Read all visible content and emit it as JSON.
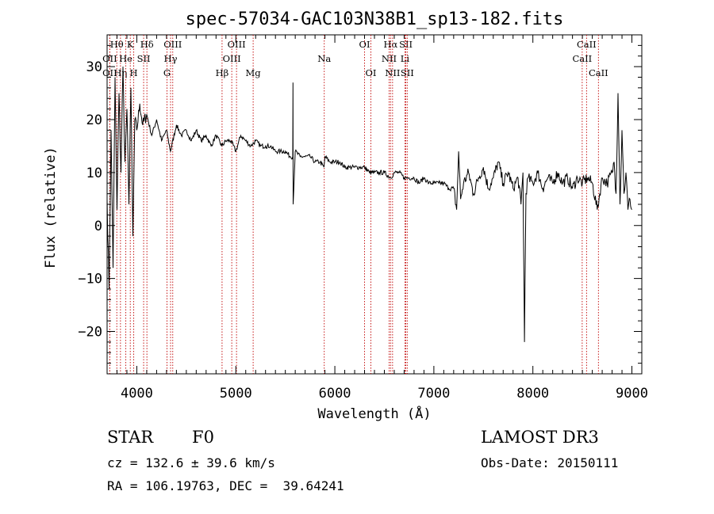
{
  "chart_data": {
    "type": "line",
    "title": "spec-57034-GAC103N38B1_sp13-182.fits",
    "xlabel": "Wavelength (Å)",
    "ylabel": "Flux (relative)",
    "xlim": [
      3700,
      9100
    ],
    "ylim": [
      -28,
      36
    ],
    "x_ticks": [
      4000,
      5000,
      6000,
      7000,
      8000,
      9000
    ],
    "x_tick_labels": [
      "4000",
      "5000",
      "6000",
      "7000",
      "8000",
      "9000"
    ],
    "y_ticks": [
      -20,
      -10,
      0,
      10,
      20,
      30
    ],
    "y_tick_labels": [
      "−20",
      "−10",
      "0",
      "10",
      "20",
      "30"
    ],
    "series": [
      {
        "name": "flux",
        "x": [
          3700,
          3720,
          3740,
          3760,
          3780,
          3800,
          3820,
          3840,
          3860,
          3880,
          3900,
          3920,
          3940,
          3960,
          3980,
          4000,
          4030,
          4060,
          4100,
          4150,
          4200,
          4250,
          4300,
          4340,
          4400,
          4450,
          4500,
          4550,
          4600,
          4650,
          4700,
          4750,
          4800,
          4860,
          4900,
          4950,
          5000,
          5050,
          5100,
          5150,
          5200,
          5250,
          5300,
          5350,
          5400,
          5450,
          5500,
          5550,
          5575,
          5577,
          5579,
          5600,
          5650,
          5700,
          5750,
          5800,
          5850,
          5890,
          5900,
          5950,
          6000,
          6050,
          6100,
          6150,
          6200,
          6250,
          6300,
          6350,
          6400,
          6450,
          6500,
          6563,
          6600,
          6650,
          6700,
          6750,
          6800,
          6850,
          6900,
          6950,
          7000,
          7050,
          7100,
          7150,
          7200,
          7230,
          7250,
          7270,
          7300,
          7350,
          7400,
          7450,
          7500,
          7550,
          7600,
          7650,
          7700,
          7750,
          7800,
          7850,
          7880,
          7900,
          7915,
          7930,
          7950,
          8000,
          8050,
          8100,
          8150,
          8200,
          8250,
          8300,
          8350,
          8400,
          8450,
          8500,
          8550,
          8600,
          8650,
          8700,
          8750,
          8800,
          8820,
          8840,
          8860,
          8880,
          8900,
          8920,
          8940,
          8960,
          8980,
          9000
        ],
        "y": [
          5,
          -12,
          18,
          -8,
          28,
          3,
          25,
          10,
          30,
          12,
          22,
          4,
          26,
          -2,
          20,
          18,
          23,
          19,
          21,
          17,
          20,
          16,
          18,
          14,
          19,
          17,
          18,
          16,
          18,
          16,
          17,
          15,
          17,
          15,
          16,
          16,
          14,
          17,
          16,
          15,
          16,
          15,
          15,
          15,
          14,
          14,
          14,
          13,
          13,
          27,
          4,
          14,
          13,
          13,
          13,
          12,
          12,
          11,
          13,
          12,
          12,
          12,
          11,
          11,
          11,
          11,
          11,
          10,
          10,
          10,
          10,
          9,
          10,
          10,
          9,
          9,
          9,
          8,
          9,
          8,
          8,
          8,
          8,
          7,
          7,
          3,
          14,
          5,
          8,
          10,
          6,
          9,
          11,
          7,
          9,
          12,
          8,
          10,
          7,
          9,
          4,
          10,
          -22,
          6,
          9,
          8,
          10,
          7,
          9,
          8,
          10,
          8,
          9,
          7,
          9,
          8,
          9,
          8,
          3,
          9,
          8,
          10,
          12,
          6,
          25,
          4,
          18,
          6,
          10,
          3,
          5,
          3
        ]
      }
    ],
    "line_markers": [
      {
        "label": "Hθ",
        "x": 3798,
        "row": 1
      },
      {
        "label": "OII",
        "x": 3727,
        "row": 2
      },
      {
        "label": "OII",
        "x": 3727,
        "row": 3
      },
      {
        "label": "Hη",
        "x": 3835,
        "row": 3
      },
      {
        "label": "He",
        "x": 3889,
        "row": 2
      },
      {
        "label": "K",
        "x": 3934,
        "row": 1
      },
      {
        "label": "H",
        "x": 3969,
        "row": 3
      },
      {
        "label": "SII",
        "x": 4069,
        "row": 2
      },
      {
        "label": "Hδ",
        "x": 4102,
        "row": 1
      },
      {
        "label": "OIII",
        "x": 4363,
        "row": 1
      },
      {
        "label": "Hγ",
        "x": 4341,
        "row": 2
      },
      {
        "label": "G",
        "x": 4305,
        "row": 3
      },
      {
        "label": "Hβ",
        "x": 4861,
        "row": 3
      },
      {
        "label": "OIII",
        "x": 5007,
        "row": 1
      },
      {
        "label": "OIII",
        "x": 4959,
        "row": 2
      },
      {
        "label": "Mg",
        "x": 5175,
        "row": 3
      },
      {
        "label": "Na",
        "x": 5893,
        "row": 2
      },
      {
        "label": "OI",
        "x": 6300,
        "row": 1
      },
      {
        "label": "OI",
        "x": 6364,
        "row": 3
      },
      {
        "label": "Hα",
        "x": 6563,
        "row": 1
      },
      {
        "label": "NII",
        "x": 6548,
        "row": 2
      },
      {
        "label": "NII",
        "x": 6583,
        "row": 3
      },
      {
        "label": "SII",
        "x": 6717,
        "row": 1
      },
      {
        "label": "Li",
        "x": 6708,
        "row": 2
      },
      {
        "label": "SII",
        "x": 6731,
        "row": 3
      },
      {
        "label": "CaII",
        "x": 8542,
        "row": 1
      },
      {
        "label": "CaII",
        "x": 8498,
        "row": 2
      },
      {
        "label": "CaII",
        "x": 8662,
        "row": 3
      }
    ],
    "line_color": "#000000",
    "marker_color": "#c00000"
  },
  "info": {
    "class_label": "STAR",
    "subclass": "F0",
    "survey": "LAMOST DR3",
    "cz": "cz = 132.6 ± 39.6 km/s",
    "obs_date": "Obs-Date: 20150111",
    "coords": "RA = 106.19763, DEC =  39.64241"
  }
}
